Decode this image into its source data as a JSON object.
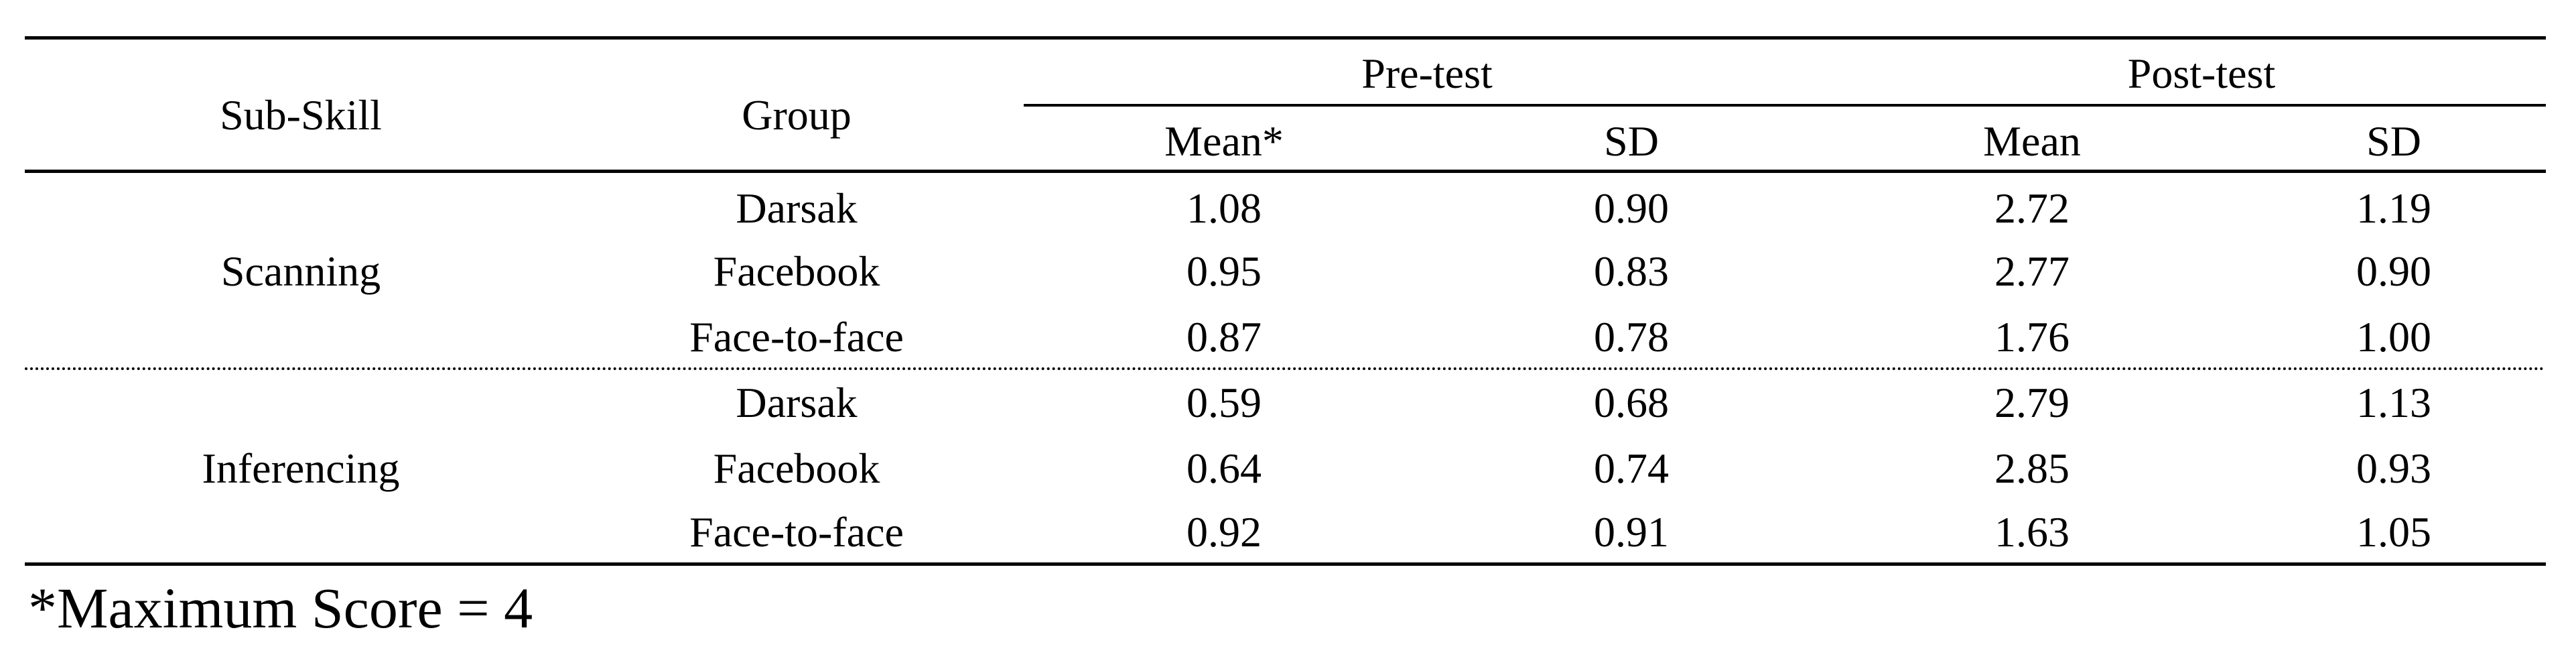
{
  "table": {
    "header": {
      "sub_skill": "Sub-Skill",
      "group": "Group",
      "pre_test": "Pre-test",
      "post_test": "Post-test",
      "pre_mean": "Mean*",
      "pre_sd": "SD",
      "post_mean": "Mean",
      "post_sd": "SD"
    },
    "sections": [
      {
        "sub_skill": "Scanning",
        "rows": [
          {
            "group": "Darsak",
            "pre_mean": "1.08",
            "pre_sd": "0.90",
            "post_mean": "2.72",
            "post_sd": "1.19"
          },
          {
            "group": "Facebook",
            "pre_mean": "0.95",
            "pre_sd": "0.83",
            "post_mean": "2.77",
            "post_sd": "0.90"
          },
          {
            "group": "Face-to-face",
            "pre_mean": "0.87",
            "pre_sd": "0.78",
            "post_mean": "1.76",
            "post_sd": "1.00"
          }
        ]
      },
      {
        "sub_skill": "Inferencing",
        "rows": [
          {
            "group": "Darsak",
            "pre_mean": "0.59",
            "pre_sd": "0.68",
            "post_mean": "2.79",
            "post_sd": "1.13"
          },
          {
            "group": "Facebook",
            "pre_mean": "0.64",
            "pre_sd": "0.74",
            "post_mean": "2.85",
            "post_sd": "0.93"
          },
          {
            "group": "Face-to-face",
            "pre_mean": "0.92",
            "pre_sd": "0.91",
            "post_mean": "1.63",
            "post_sd": "1.05"
          }
        ]
      }
    ],
    "footnote": "*Maximum Score = 4"
  }
}
